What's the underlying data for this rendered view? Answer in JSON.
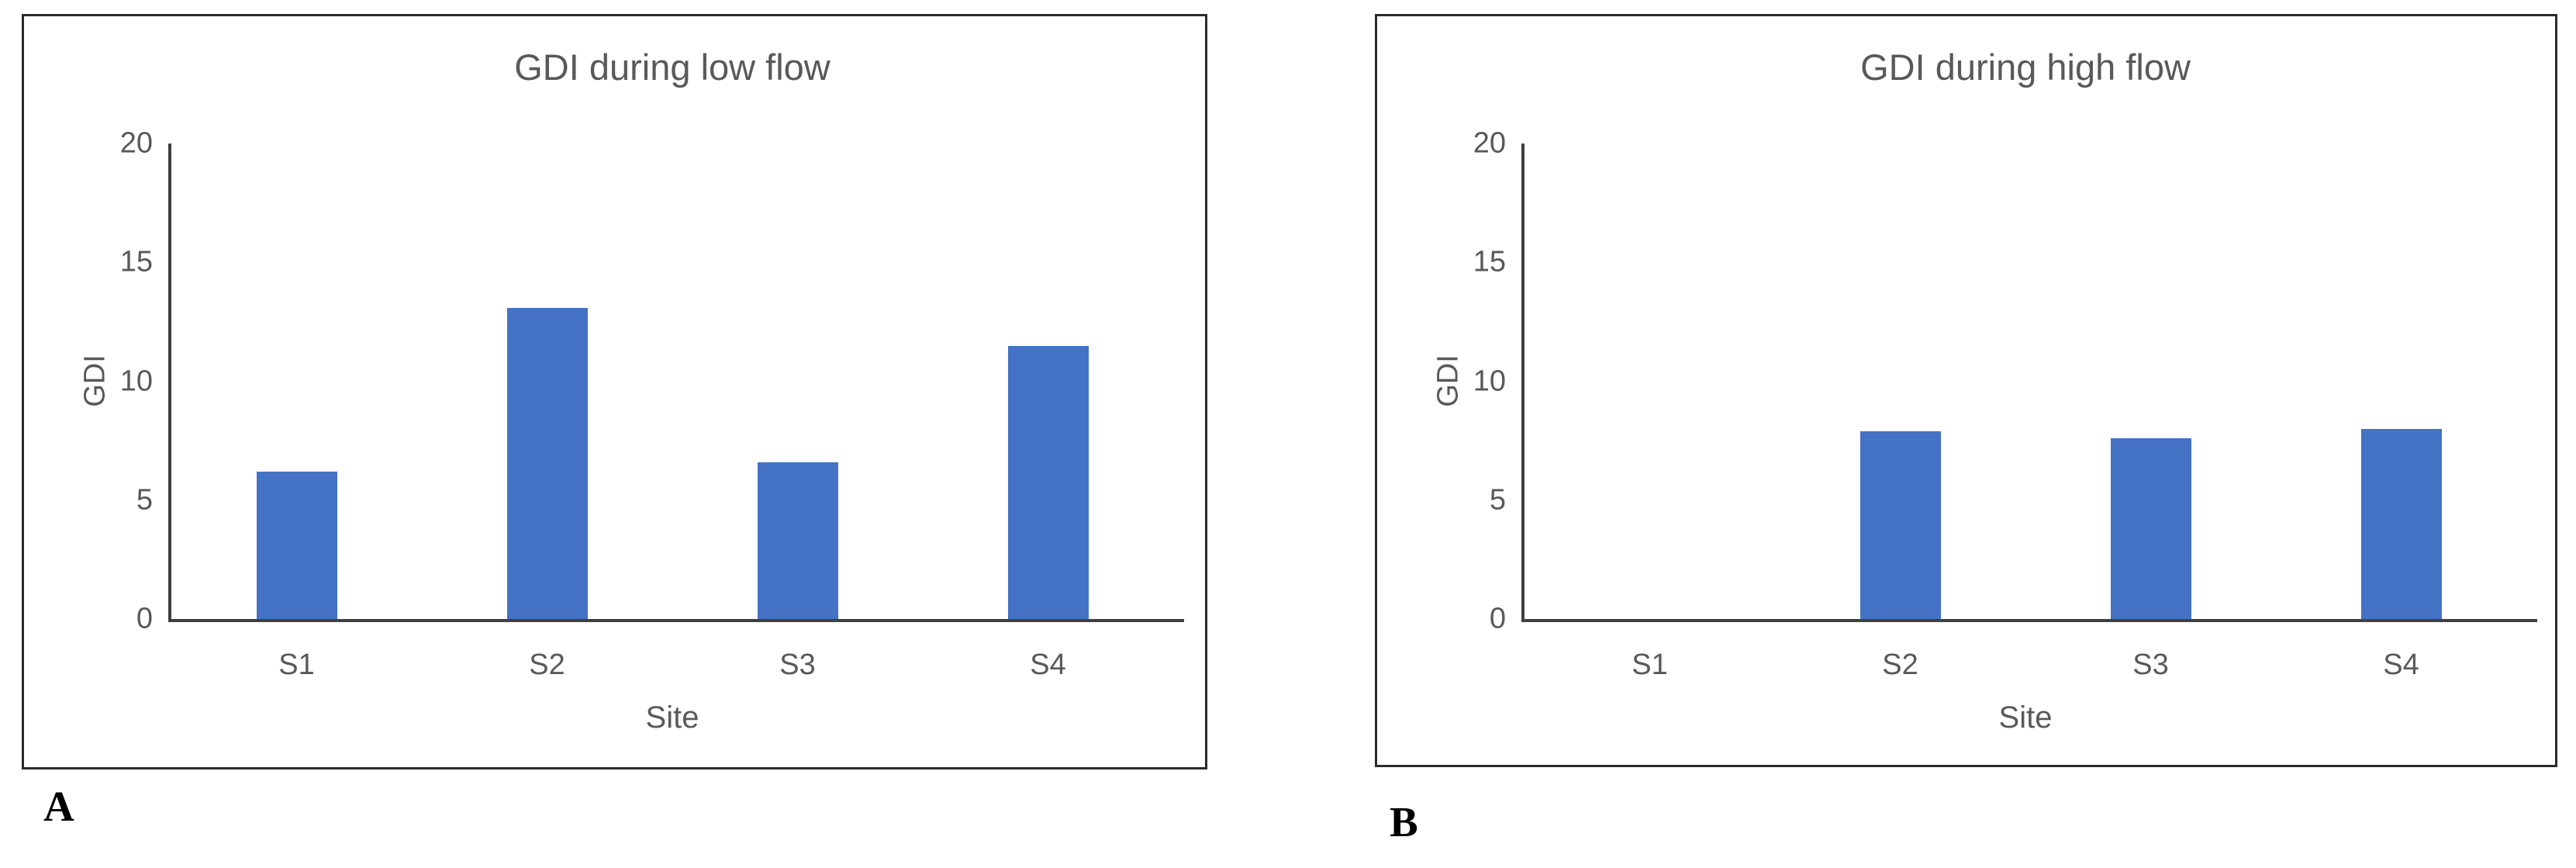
{
  "figure_labels": {
    "panel_a": "A",
    "panel_b": "B"
  },
  "colors": {
    "bar": "#4472C4",
    "axis": "#404040",
    "text": "#595959",
    "panel_border": "#2b2b2b"
  },
  "chart_data": [
    {
      "type": "bar",
      "title": "GDI during low flow",
      "xlabel": "Site",
      "ylabel": "GDI",
      "categories": [
        "S1",
        "S2",
        "S3",
        "S4"
      ],
      "values": [
        6.2,
        13.1,
        6.6,
        11.5
      ],
      "ylim": [
        0,
        20
      ],
      "yticks": [
        0,
        5,
        10,
        15,
        20
      ],
      "grid": false,
      "legend": false
    },
    {
      "type": "bar",
      "title": "GDI during high flow",
      "xlabel": "Site",
      "ylabel": "GDI",
      "categories": [
        "S1",
        "S2",
        "S3",
        "S4"
      ],
      "values": [
        0,
        7.9,
        7.6,
        8.0
      ],
      "ylim": [
        0,
        20
      ],
      "yticks": [
        0,
        5,
        10,
        15,
        20
      ],
      "grid": false,
      "legend": false
    }
  ]
}
